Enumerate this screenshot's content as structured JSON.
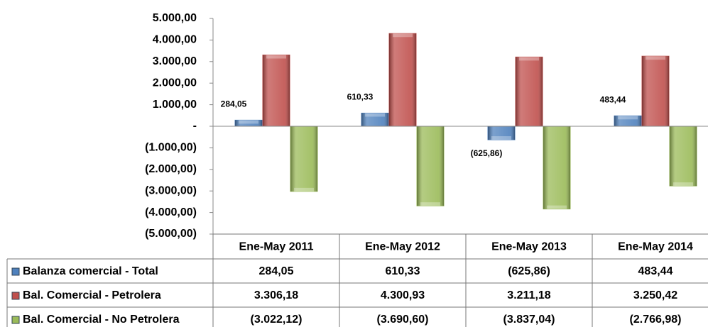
{
  "chart_data": {
    "type": "bar",
    "categories": [
      "Ene-May 2011",
      "Ene-May 2012",
      "Ene-May 2013",
      "Ene-May 2014"
    ],
    "series": [
      {
        "name": "Balanza comercial - Total",
        "color": "#4f81bd",
        "values": [
          284.05,
          610.33,
          -625.86,
          483.44
        ],
        "value_labels": [
          "284,05",
          "610,33",
          "(625,86)",
          "483,44"
        ]
      },
      {
        "name": "Bal. Comercial - Petrolera",
        "color": "#c0504d",
        "values": [
          3306.18,
          4300.93,
          3211.18,
          3250.42
        ],
        "value_labels": [
          "3.306,18",
          "4.300,93",
          "3.211,18",
          "3.250,42"
        ]
      },
      {
        "name": "Bal. Comercial - No Petrolera",
        "color": "#9bbb59",
        "values": [
          -3022.12,
          -3690.6,
          -3837.04,
          -2766.98
        ],
        "value_labels": [
          "(3.022,12)",
          "(3.690,60)",
          "(3.837,04)",
          "(2.766,98)"
        ]
      }
    ],
    "ylim": [
      -5000,
      5000
    ],
    "yticks": [
      {
        "value": 5000,
        "label": "5.000,00"
      },
      {
        "value": 4000,
        "label": "4.000,00"
      },
      {
        "value": 3000,
        "label": "3.000,00"
      },
      {
        "value": 2000,
        "label": "2.000,00"
      },
      {
        "value": 1000,
        "label": "1.000,00"
      },
      {
        "value": 0,
        "label": "-"
      },
      {
        "value": -1000,
        "label": "(1.000,00)"
      },
      {
        "value": -2000,
        "label": "(2.000,00)"
      },
      {
        "value": -3000,
        "label": "(3.000,00)"
      },
      {
        "value": -4000,
        "label": "(4.000,00)"
      },
      {
        "value": -5000,
        "label": "(5.000,00)"
      }
    ],
    "data_labels_series": 0,
    "data_table": true
  }
}
